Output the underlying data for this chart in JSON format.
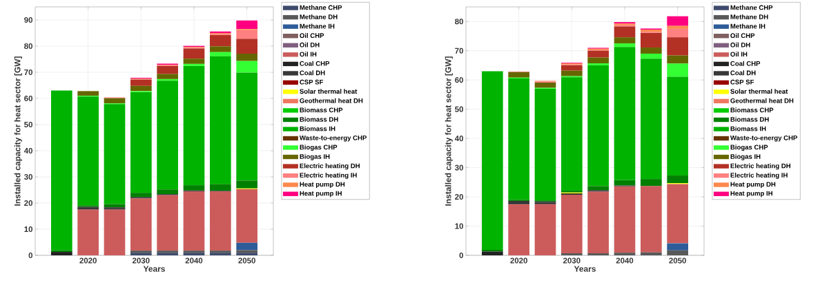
{
  "chart_data": [
    {
      "type": "bar",
      "stacked": true,
      "xlabel": "Years",
      "ylabel": "Installed capacity for heat sector [GW]",
      "x": [
        2015,
        2020,
        2025,
        2030,
        2035,
        2040,
        2045,
        2050
      ],
      "xlim": [
        2010,
        2055
      ],
      "xticks": [
        2020,
        2030,
        2040,
        2050
      ],
      "ylim": [
        0,
        95
      ],
      "yticks": [
        0,
        10,
        20,
        30,
        40,
        50,
        60,
        70,
        80,
        90
      ],
      "grid": true,
      "legend": "right",
      "series": [
        {
          "name": "Methane CHP",
          "color": "#3d4a6b",
          "values": [
            0,
            0,
            0,
            1.0,
            1.0,
            1.0,
            1.0,
            1.0
          ]
        },
        {
          "name": "Methane DH",
          "color": "#595959",
          "values": [
            0,
            0,
            0,
            0.8,
            0.8,
            0.8,
            0.8,
            1.0
          ]
        },
        {
          "name": "Methane IH",
          "color": "#2e5c99",
          "values": [
            0,
            0,
            0,
            0,
            0,
            0,
            0,
            2.8
          ]
        },
        {
          "name": "Oil CHP",
          "color": "#7f5f5f",
          "values": [
            0,
            0,
            0,
            0,
            0,
            0,
            0,
            0
          ]
        },
        {
          "name": "Oil DH",
          "color": "#7f5f7f",
          "values": [
            0,
            0,
            0,
            0,
            0,
            0,
            0,
            0
          ]
        },
        {
          "name": "Oil IH",
          "color": "#cc5c5c",
          "values": [
            0,
            17.5,
            17.5,
            20.0,
            21.2,
            22.7,
            22.7,
            20.5
          ]
        },
        {
          "name": "Coal CHP",
          "color": "#222222",
          "values": [
            1.3,
            0.6,
            0.5,
            0,
            0,
            0,
            0,
            0
          ]
        },
        {
          "name": "Coal DH",
          "color": "#383838",
          "values": [
            0,
            0.4,
            0.4,
            0.5,
            0.4,
            0.3,
            0.2,
            0
          ]
        },
        {
          "name": "CSP SF",
          "color": "#990000",
          "values": [
            0,
            0,
            0,
            0,
            0,
            0,
            0,
            0
          ]
        },
        {
          "name": "Solar thermal heat",
          "color": "#ffff00",
          "values": [
            0,
            0,
            0,
            0,
            0,
            0,
            0,
            0.3
          ]
        },
        {
          "name": "Geothermal heat DH",
          "color": "#f07860",
          "values": [
            0,
            0,
            0,
            0,
            0,
            0,
            0,
            0
          ]
        },
        {
          "name": "Biomass CHP",
          "color": "#00cc00",
          "values": [
            0,
            0,
            0,
            0,
            0,
            0,
            0,
            0
          ]
        },
        {
          "name": "Biomass DH",
          "color": "#007f00",
          "values": [
            0.6,
            0.6,
            1.2,
            1.6,
            1.8,
            2.0,
            2.5,
            3.0
          ]
        },
        {
          "name": "Biomass IH",
          "color": "#00b300",
          "values": [
            61.1,
            41.6,
            38.2,
            38.5,
            41.6,
            45.6,
            48.9,
            41.3
          ]
        },
        {
          "name": "Waste-to-energy CHP",
          "color": "#663300",
          "values": [
            0,
            0,
            0,
            0,
            0,
            0,
            0,
            0
          ]
        },
        {
          "name": "Biogas CHP",
          "color": "#33ff33",
          "values": [
            0,
            0.3,
            0.3,
            0.4,
            0.6,
            0.8,
            1.6,
            4.4
          ]
        },
        {
          "name": "Biogas IH",
          "color": "#666600",
          "values": [
            0,
            1.8,
            2.0,
            2.0,
            2.0,
            2.0,
            2.2,
            2.8
          ]
        },
        {
          "name": "Electric heating DH",
          "color": "#b33024",
          "values": [
            0,
            0,
            0,
            2.4,
            3.0,
            3.9,
            4.3,
            5.7
          ]
        },
        {
          "name": "Electric heating IH",
          "color": "#ff8080",
          "values": [
            null,
            null,
            0.3,
            0.2,
            0.3,
            0.3,
            0.4,
            3.3
          ]
        },
        {
          "name": "Heat pump DH",
          "color": "#ff884d",
          "values": [
            0,
            0,
            0,
            0.2,
            0.2,
            0.3,
            0.4,
            0.4
          ]
        },
        {
          "name": "Heat pump IH",
          "color": "#ff0080",
          "values": [
            0,
            0,
            0,
            0.3,
            0.4,
            0.4,
            0.6,
            3.3
          ]
        }
      ]
    },
    {
      "type": "bar",
      "stacked": true,
      "xlabel": "Years",
      "ylabel": "Installed capacity for heat sector [GW]",
      "x": [
        2015,
        2020,
        2025,
        2030,
        2035,
        2040,
        2045,
        2050
      ],
      "xlim": [
        2010,
        2055
      ],
      "xticks": [
        2020,
        2030,
        2040,
        2050
      ],
      "ylim": [
        0,
        85
      ],
      "yticks": [
        0,
        10,
        20,
        30,
        40,
        50,
        60,
        70,
        80
      ],
      "grid": true,
      "legend": "right",
      "series": [
        {
          "name": "Methane CHP",
          "color": "#3d4a6b",
          "values": [
            0,
            0,
            0,
            0,
            0,
            0,
            0,
            0
          ]
        },
        {
          "name": "Methane DH",
          "color": "#595959",
          "values": [
            0,
            0,
            0,
            0.7,
            0.7,
            0.9,
            1.0,
            1.7
          ]
        },
        {
          "name": "Methane IH",
          "color": "#2e5c99",
          "values": [
            0,
            0,
            0,
            0,
            0,
            0,
            0,
            2.4
          ]
        },
        {
          "name": "Oil CHP",
          "color": "#7f5f5f",
          "values": [
            0,
            0,
            0,
            0,
            0,
            0,
            0,
            0
          ]
        },
        {
          "name": "Oil DH",
          "color": "#7f5f7f",
          "values": [
            0,
            0,
            0,
            0,
            0,
            0,
            0,
            0
          ]
        },
        {
          "name": "Oil IH",
          "color": "#cc5c5c",
          "values": [
            0,
            17.5,
            17.5,
            20.0,
            21.1,
            22.7,
            22.7,
            20.3
          ]
        },
        {
          "name": "Coal CHP",
          "color": "#222222",
          "values": [
            1.3,
            0.6,
            0.5,
            0,
            0,
            0,
            0,
            0
          ]
        },
        {
          "name": "Coal DH",
          "color": "#383838",
          "values": [
            0,
            0.5,
            0.4,
            0.5,
            0.5,
            0.3,
            0,
            0
          ]
        },
        {
          "name": "CSP SF",
          "color": "#990000",
          "values": [
            0,
            0,
            0,
            0,
            0,
            0,
            0,
            0
          ]
        },
        {
          "name": "Solar thermal heat",
          "color": "#ffff00",
          "values": [
            0,
            0,
            0,
            0.3,
            0,
            0,
            0,
            0.3
          ]
        },
        {
          "name": "Geothermal heat DH",
          "color": "#f07860",
          "values": [
            0,
            0,
            0,
            0,
            0,
            0,
            0,
            0
          ]
        },
        {
          "name": "Biomass CHP",
          "color": "#00cc00",
          "values": [
            0,
            0,
            0,
            0,
            0,
            0,
            0,
            0
          ]
        },
        {
          "name": "Biomass DH",
          "color": "#007f00",
          "values": [
            0.6,
            0.4,
            0.4,
            0.6,
            1.4,
            1.8,
            2.4,
            2.6
          ]
        },
        {
          "name": "Biomass IH",
          "color": "#00b300",
          "values": [
            61.1,
            41.5,
            38.2,
            38.8,
            41.3,
            45.6,
            41.2,
            33.8
          ]
        },
        {
          "name": "Waste-to-energy CHP",
          "color": "#663300",
          "values": [
            0,
            0,
            0,
            0,
            0,
            0,
            0,
            0
          ]
        },
        {
          "name": "Biogas CHP",
          "color": "#33ff33",
          "values": [
            0,
            0.3,
            0.3,
            0.4,
            0.7,
            1.2,
            1.7,
            4.5
          ]
        },
        {
          "name": "Biogas IH",
          "color": "#666600",
          "values": [
            0,
            1.9,
            1.8,
            1.9,
            2.0,
            2.1,
            2.1,
            2.8
          ]
        },
        {
          "name": "Electric heating DH",
          "color": "#b33024",
          "values": [
            0,
            0,
            0,
            1.8,
            2.3,
            3.7,
            5.0,
            6.2
          ]
        },
        {
          "name": "Electric heating IH",
          "color": "#ff8080",
          "values": [
            null,
            0.2,
            0.4,
            0.3,
            0.2,
            0.4,
            0.3,
            2.9
          ]
        },
        {
          "name": "Heat pump DH",
          "color": "#ff884d",
          "values": [
            0,
            0,
            0.2,
            0.4,
            0.5,
            0.6,
            0.8,
            1.0
          ]
        },
        {
          "name": "Heat pump IH",
          "color": "#ff0080",
          "values": [
            0,
            0,
            0,
            0.2,
            0.3,
            0.5,
            0.4,
            3.3
          ]
        }
      ]
    }
  ]
}
